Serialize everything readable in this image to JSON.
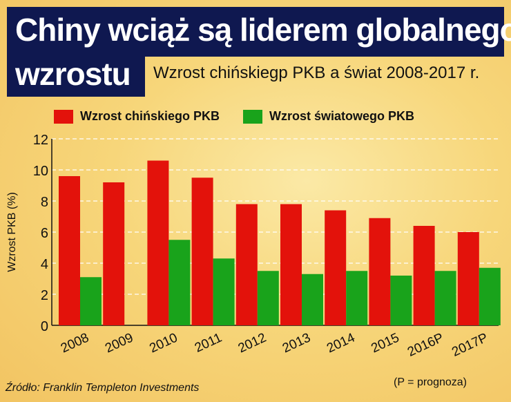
{
  "title_line1": "Chiny wciąż są liderem globalnego",
  "title_line2": "wzrostu",
  "source": "Źródło: Franklin Templeton Investments",
  "note": "(P = prognoza)",
  "colors": {
    "china": "#e3120b",
    "world": "#19a31b",
    "title_bg": "#0f1850"
  },
  "chart_data": {
    "type": "bar",
    "title": "Wzrost chińskiegp PKB a świat 2008-2017 r.",
    "xlabel": "",
    "ylabel": "Wzrost PKB (%)",
    "ylim": [
      0,
      12
    ],
    "yticks": [
      0,
      2,
      4,
      6,
      8,
      10,
      12
    ],
    "grid": true,
    "legend_position": "top",
    "categories": [
      "2008",
      "2009",
      "2010",
      "2011",
      "2012",
      "2013",
      "2014",
      "2015",
      "2016P",
      "2017P"
    ],
    "series": [
      {
        "name": "Wzrost chińskiego PKB",
        "values": [
          9.6,
          9.2,
          10.6,
          9.5,
          7.8,
          7.8,
          7.4,
          6.9,
          6.4,
          6.0
        ]
      },
      {
        "name": "Wzrost światowego PKB",
        "values": [
          3.1,
          null,
          5.5,
          4.3,
          3.5,
          3.3,
          3.5,
          3.2,
          3.5,
          3.7
        ]
      }
    ]
  }
}
